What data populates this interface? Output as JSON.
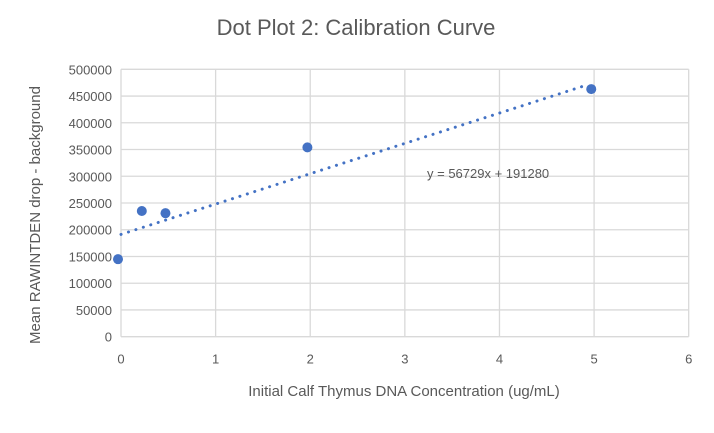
{
  "chart_data": {
    "type": "scatter",
    "title": "Dot Plot 2: Calibration Curve",
    "xlabel": "Initial Calf Thymus DNA Concentration (ug/mL)",
    "ylabel": "Mean RAWINTDEN drop - background",
    "xlim": [
      0,
      6
    ],
    "ylim": [
      0,
      500000
    ],
    "xticks": [
      "0",
      "1",
      "2",
      "3",
      "4",
      "5",
      "6"
    ],
    "yticks": [
      "0",
      "50000",
      "100000",
      "150000",
      "200000",
      "250000",
      "300000",
      "350000",
      "400000",
      "450000",
      "500000"
    ],
    "grid": true,
    "legend": "none",
    "points": [
      {
        "x": 0,
        "y": 145000
      },
      {
        "x": 0.22,
        "y": 235000
      },
      {
        "x": 0.47,
        "y": 231000
      },
      {
        "x": 1.97,
        "y": 354000
      },
      {
        "x": 4.97,
        "y": 463000
      }
    ],
    "trendline": {
      "slope": 56729,
      "intercept": 191280,
      "x_range": [
        0,
        4.9
      ],
      "style": "dotted",
      "equation": "y = 56729x + 191280"
    },
    "colors": {
      "marker": "#4472C4",
      "grid": "#D9D9D9",
      "text": "#595959"
    }
  }
}
